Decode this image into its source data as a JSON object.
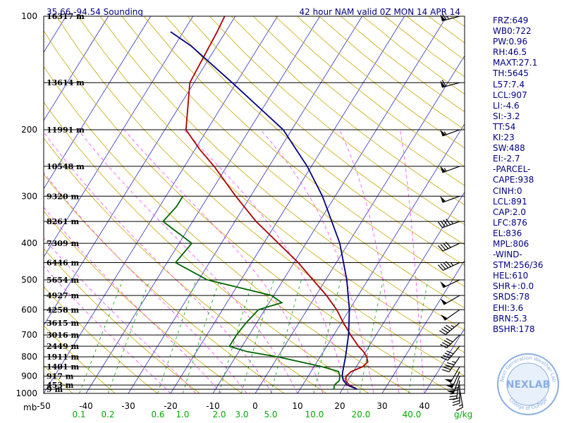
{
  "header": {
    "location": "35.66,-94.54 Sounding",
    "valid": "42 hour NAM valid 0Z MON 14 APR 14"
  },
  "logo": {
    "brand": "NEXLAB",
    "ring_top": "Next Generation Weather Lab",
    "ring_bottom": "College of DuPage"
  },
  "indices": [
    "FRZ:649",
    "WB0:722",
    "PW:0.96",
    "RH:46.5",
    "MAXT:27.1",
    "TH:5645",
    "L57:7.4",
    "LCL:907",
    "LI:-4.6",
    "SI:-3.2",
    "TT:54",
    "KI:23",
    "SW:488",
    "EI:-2.7",
    "-PARCEL-",
    "CAPE:938",
    "CINH:0",
    "LCL:891",
    "CAP:2.0",
    "LFC:876",
    "EL:836",
    "MPL:806",
    "-WIND-",
    "STM:256/36",
    "HEL:610",
    "SHR+:0.0",
    "SRDS:78",
    "EHI:3.6",
    "BRN:5.3",
    "BSHR:178"
  ],
  "chart_data": {
    "type": "line",
    "chart_kind": "skew-T log-p sounding",
    "y_axis_unit": "mb",
    "y_scale": "log",
    "ylim": [
      1000,
      100
    ],
    "xlim": [
      -50,
      50
    ],
    "pressure_ticks": [
      100,
      200,
      300,
      400,
      500,
      600,
      700,
      800,
      900,
      1000
    ],
    "temperature_ticks": [
      -50,
      -40,
      -30,
      -20,
      -10,
      0,
      10,
      20,
      30,
      40
    ],
    "mixing_ratio_ticks": [
      "0.1",
      "0.2",
      "0.6",
      "1.0",
      "2.0",
      "3.0",
      "5.0",
      "10.0",
      "20.0",
      "40.0"
    ],
    "mixing_ratio_unit": "g/kg",
    "height_levels": [
      {
        "p": 100,
        "label": "16317 m"
      },
      {
        "p": 150,
        "label": "13614 m"
      },
      {
        "p": 200,
        "label": "11991 m"
      },
      {
        "p": 250,
        "label": "10548 m"
      },
      {
        "p": 300,
        "label": "9320 m"
      },
      {
        "p": 350,
        "label": "8261 m"
      },
      {
        "p": 400,
        "label": "7309 m"
      },
      {
        "p": 450,
        "label": "6446 m"
      },
      {
        "p": 500,
        "label": "5654 m"
      },
      {
        "p": 550,
        "label": "4927 m"
      },
      {
        "p": 600,
        "label": "4258 m"
      },
      {
        "p": 650,
        "label": "3615 m"
      },
      {
        "p": 700,
        "label": "3016 m"
      },
      {
        "p": 750,
        "label": "2449 m"
      },
      {
        "p": 800,
        "label": "1911 m"
      },
      {
        "p": 850,
        "label": "1401 m"
      },
      {
        "p": 900,
        "label": "917 m"
      },
      {
        "p": 950,
        "label": "453 m"
      },
      {
        "p": 975,
        "label": "9 m"
      }
    ],
    "series": [
      {
        "kind": "temperature",
        "color": "#aa0000",
        "points": [
          [
            975,
            23.5
          ],
          [
            950,
            21
          ],
          [
            925,
            19.5
          ],
          [
            900,
            19
          ],
          [
            875,
            19.5
          ],
          [
            850,
            21.5
          ],
          [
            825,
            22
          ],
          [
            800,
            21
          ],
          [
            775,
            19.5
          ],
          [
            750,
            17.5
          ],
          [
            700,
            14
          ],
          [
            650,
            10.5
          ],
          [
            600,
            7
          ],
          [
            550,
            2.5
          ],
          [
            500,
            -3
          ],
          [
            450,
            -9
          ],
          [
            400,
            -16.5
          ],
          [
            350,
            -25
          ],
          [
            300,
            -33.5
          ],
          [
            250,
            -43
          ],
          [
            225,
            -49
          ],
          [
            200,
            -55
          ],
          [
            150,
            -61
          ],
          [
            110,
            -62
          ],
          [
            100,
            -62.5
          ]
        ]
      },
      {
        "kind": "dewpoint",
        "color": "#006600",
        "points": [
          [
            975,
            18
          ],
          [
            950,
            17.5
          ],
          [
            925,
            18
          ],
          [
            900,
            17.5
          ],
          [
            875,
            16.5
          ],
          [
            850,
            12
          ],
          [
            800,
            0
          ],
          [
            775,
            -8
          ],
          [
            750,
            -13
          ],
          [
            700,
            -13
          ],
          [
            650,
            -12.5
          ],
          [
            600,
            -11.5
          ],
          [
            575,
            -7
          ],
          [
            550,
            -10.5
          ],
          [
            500,
            -28
          ],
          [
            450,
            -38
          ],
          [
            400,
            -37
          ],
          [
            350,
            -47
          ],
          [
            320,
            -46
          ],
          [
            300,
            -46
          ]
        ]
      },
      {
        "kind": "parcel",
        "color": "#000080",
        "points": [
          [
            975,
            23.5
          ],
          [
            950,
            20.5
          ],
          [
            925,
            19
          ],
          [
            900,
            18
          ],
          [
            875,
            17.5
          ],
          [
            850,
            17
          ],
          [
            800,
            16
          ],
          [
            700,
            13.5
          ],
          [
            600,
            10
          ],
          [
            500,
            5
          ],
          [
            400,
            -2
          ],
          [
            300,
            -13
          ],
          [
            250,
            -21
          ],
          [
            200,
            -32
          ],
          [
            150,
            -51
          ],
          [
            120,
            -66
          ],
          [
            110,
            -73
          ]
        ]
      }
    ],
    "wind_barbs": [
      {
        "p": 975,
        "dir": 170,
        "spd": 15
      },
      {
        "p": 950,
        "dir": 180,
        "spd": 30
      },
      {
        "p": 925,
        "dir": 190,
        "spd": 45
      },
      {
        "p": 900,
        "dir": 200,
        "spd": 55
      },
      {
        "p": 875,
        "dir": 205,
        "spd": 55
      },
      {
        "p": 850,
        "dir": 210,
        "spd": 50
      },
      {
        "p": 800,
        "dir": 215,
        "spd": 45
      },
      {
        "p": 750,
        "dir": 220,
        "spd": 40
      },
      {
        "p": 700,
        "dir": 225,
        "spd": 40
      },
      {
        "p": 650,
        "dir": 230,
        "spd": 45
      },
      {
        "p": 600,
        "dir": 235,
        "spd": 50
      },
      {
        "p": 550,
        "dir": 240,
        "spd": 50
      },
      {
        "p": 500,
        "dir": 245,
        "spd": 50
      },
      {
        "p": 450,
        "dir": 245,
        "spd": 45
      },
      {
        "p": 400,
        "dir": 245,
        "spd": 40
      },
      {
        "p": 350,
        "dir": 250,
        "spd": 45
      },
      {
        "p": 300,
        "dir": 250,
        "spd": 50
      },
      {
        "p": 250,
        "dir": 250,
        "spd": 55
      },
      {
        "p": 200,
        "dir": 250,
        "spd": 55
      },
      {
        "p": 150,
        "dir": 255,
        "spd": 60
      },
      {
        "p": 100,
        "dir": 255,
        "spd": 65
      }
    ],
    "grid": {
      "isotherms": "blue",
      "dry_adiabats": "#c8a800",
      "moist_adiabats": "#ff44ff",
      "mixing_ratio": "#00aa00"
    }
  }
}
